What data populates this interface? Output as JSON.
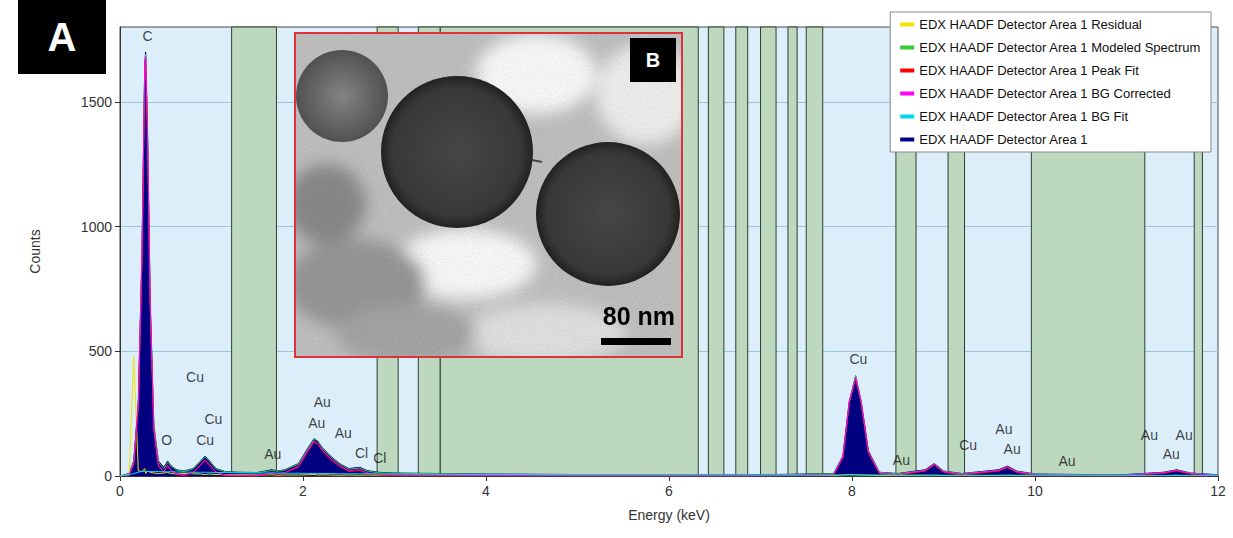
{
  "panel_label": "A",
  "chart_data": {
    "type": "line",
    "x_label": "Energy (keV)",
    "y_label": "Counts",
    "xlim": [
      0,
      12
    ],
    "xticks": [
      0,
      2,
      4,
      6,
      8,
      10,
      12
    ],
    "ylim": [
      0,
      1800
    ],
    "yticks": [
      0,
      500,
      1000,
      1500
    ],
    "grid": true,
    "legend": "top-right",
    "x": [
      0,
      0.1,
      0.15,
      0.2,
      0.24,
      0.27,
      0.28,
      0.3,
      0.33,
      0.37,
      0.42,
      0.48,
      0.52,
      0.56,
      0.62,
      0.7,
      0.8,
      0.88,
      0.93,
      0.98,
      1.05,
      1.15,
      1.3,
      1.5,
      1.66,
      1.72,
      1.8,
      1.95,
      2.05,
      2.12,
      2.16,
      2.22,
      2.3,
      2.4,
      2.5,
      2.62,
      2.7,
      2.82,
      3.0,
      3.5,
      4,
      5,
      6,
      7,
      7.8,
      7.9,
      7.97,
      8.04,
      8.1,
      8.18,
      8.3,
      8.5,
      8.8,
      8.9,
      9.0,
      9.2,
      9.6,
      9.7,
      9.8,
      10.0,
      10.5,
      11.0,
      11.4,
      11.55,
      11.7,
      12.0
    ],
    "series": [
      {
        "name": "EDX HAADF Detector Area 1 Residual",
        "color": "#f2e200",
        "type": "line",
        "values": [
          0,
          5,
          480,
          20,
          18,
          30,
          10,
          20,
          15,
          12,
          10,
          12,
          14,
          10,
          8,
          10,
          9,
          8,
          6,
          8,
          6,
          5,
          5,
          4,
          5,
          3,
          4,
          4,
          5,
          6,
          4,
          5,
          4,
          3,
          4,
          3,
          4,
          3,
          3,
          3,
          3,
          2,
          2,
          2,
          2,
          4,
          6,
          5,
          4,
          3,
          2,
          2,
          3,
          3,
          2,
          2,
          2,
          3,
          2,
          2,
          2,
          2,
          2,
          3,
          2,
          2
        ]
      },
      {
        "name": "EDX HAADF Detector Area 1 Modeled Spectrum",
        "color": "#33cc33",
        "type": "line",
        "values": [
          0,
          8,
          55,
          290,
          880,
          1620,
          1690,
          1420,
          720,
          210,
          55,
          30,
          55,
          38,
          24,
          18,
          28,
          58,
          78,
          58,
          28,
          17,
          14,
          13,
          22,
          19,
          24,
          48,
          105,
          148,
          142,
          108,
          78,
          48,
          28,
          32,
          20,
          13,
          11,
          9,
          7,
          5,
          4,
          4,
          9,
          75,
          295,
          405,
          298,
          95,
          14,
          9,
          22,
          48,
          19,
          9,
          22,
          38,
          18,
          7,
          5,
          5,
          13,
          23,
          11,
          4
        ]
      },
      {
        "name": "EDX HAADF Detector Area 1 Peak Fit",
        "color": "#ff0000",
        "type": "line",
        "values": [
          0,
          3,
          45,
          280,
          870,
          1610,
          1680,
          1390,
          690,
          190,
          40,
          15,
          40,
          20,
          6,
          2,
          12,
          42,
          62,
          42,
          13,
          2,
          0,
          0,
          10,
          6,
          12,
          36,
          96,
          136,
          128,
          96,
          66,
          38,
          18,
          22,
          10,
          4,
          1,
          0,
          0,
          0,
          0,
          0,
          5,
          72,
          292,
          392,
          292,
          92,
          9,
          4,
          19,
          44,
          15,
          4,
          19,
          34,
          14,
          2,
          0,
          0,
          10,
          20,
          7,
          0
        ]
      },
      {
        "name": "EDX HAADF Detector Area 1 BG Corrected",
        "color": "#ff00ff",
        "type": "line",
        "values": [
          0,
          5,
          50,
          285,
          882,
          1632,
          1682,
          1382,
          682,
          182,
          42,
          18,
          43,
          23,
          9,
          4,
          15,
          45,
          65,
          45,
          16,
          4,
          2,
          2,
          13,
          8,
          14,
          39,
          100,
          140,
          130,
          100,
          70,
          41,
          21,
          26,
          13,
          7,
          4,
          3,
          2,
          1,
          0,
          1,
          6,
          76,
          296,
          396,
          296,
          96,
          11,
          6,
          22,
          47,
          17,
          7,
          22,
          37,
          17,
          5,
          3,
          4,
          13,
          23,
          10,
          3
        ]
      },
      {
        "name": "EDX HAADF Detector Area 1 BG Fit",
        "color": "#00d8f0",
        "type": "line",
        "values": [
          0,
          5,
          10,
          15,
          18,
          18,
          18,
          18,
          18,
          18,
          18,
          17,
          17,
          17,
          16,
          16,
          15,
          15,
          15,
          15,
          14,
          14,
          13,
          12,
          12,
          12,
          11,
          11,
          10,
          10,
          10,
          10,
          10,
          9,
          9,
          9,
          9,
          8,
          8,
          7,
          6,
          5,
          5,
          4,
          4,
          4,
          4,
          4,
          4,
          4,
          4,
          4,
          3,
          3,
          3,
          3,
          3,
          3,
          3,
          3,
          3,
          2,
          2,
          2,
          2,
          2
        ]
      },
      {
        "name": "EDX HAADF Detector Area 1",
        "color": "#000080",
        "type": "area",
        "values": [
          0,
          10,
          60,
          300,
          900,
          1650,
          1700,
          1400,
          700,
          200,
          60,
          35,
          60,
          40,
          25,
          20,
          30,
          60,
          80,
          60,
          30,
          18,
          15,
          14,
          25,
          20,
          25,
          50,
          110,
          150,
          140,
          110,
          80,
          50,
          30,
          35,
          22,
          15,
          12,
          10,
          8,
          6,
          5,
          5,
          10,
          80,
          300,
          400,
          300,
          100,
          15,
          10,
          25,
          50,
          20,
          10,
          25,
          40,
          20,
          8,
          6,
          6,
          15,
          25,
          12,
          5
        ]
      }
    ],
    "shaded_ranges": {
      "color": "#bcd8bf",
      "ranges": [
        [
          1.22,
          1.71
        ],
        [
          2.81,
          3.04
        ],
        [
          3.26,
          3.5
        ],
        [
          3.5,
          6.32
        ],
        [
          6.43,
          6.6
        ],
        [
          6.73,
          6.86
        ],
        [
          7.0,
          7.17
        ],
        [
          7.3,
          7.4
        ],
        [
          7.5,
          7.68
        ],
        [
          8.48,
          8.7
        ],
        [
          9.05,
          9.23
        ],
        [
          9.96,
          11.2
        ],
        [
          11.74,
          11.83
        ]
      ]
    },
    "annotations": [
      {
        "text": "C",
        "x": 0.3,
        "y": 1764
      },
      {
        "text": "Cu",
        "x": 0.82,
        "y": 396
      },
      {
        "text": "Cu",
        "x": 1.02,
        "y": 228
      },
      {
        "text": "O",
        "x": 0.51,
        "y": 144
      },
      {
        "text": "Cu",
        "x": 0.93,
        "y": 144
      },
      {
        "text": "Au",
        "x": 1.67,
        "y": 88
      },
      {
        "text": "Au",
        "x": 2.21,
        "y": 296
      },
      {
        "text": "Au",
        "x": 2.15,
        "y": 212
      },
      {
        "text": "Au",
        "x": 2.44,
        "y": 172
      },
      {
        "text": "Cl",
        "x": 2.64,
        "y": 92
      },
      {
        "text": "Cl",
        "x": 2.84,
        "y": 72
      },
      {
        "text": "Cu",
        "x": 8.07,
        "y": 468
      },
      {
        "text": "Au",
        "x": 8.54,
        "y": 64
      },
      {
        "text": "Cu",
        "x": 9.27,
        "y": 124
      },
      {
        "text": "Au",
        "x": 9.66,
        "y": 188
      },
      {
        "text": "Au",
        "x": 9.75,
        "y": 108
      },
      {
        "text": "Au",
        "x": 10.35,
        "y": 60
      },
      {
        "text": "Au",
        "x": 11.25,
        "y": 164
      },
      {
        "text": "Au",
        "x": 11.63,
        "y": 164
      },
      {
        "text": "Au",
        "x": 11.49,
        "y": 88
      }
    ]
  },
  "inset": {
    "label": "B",
    "scale_bar": "80 nm"
  }
}
